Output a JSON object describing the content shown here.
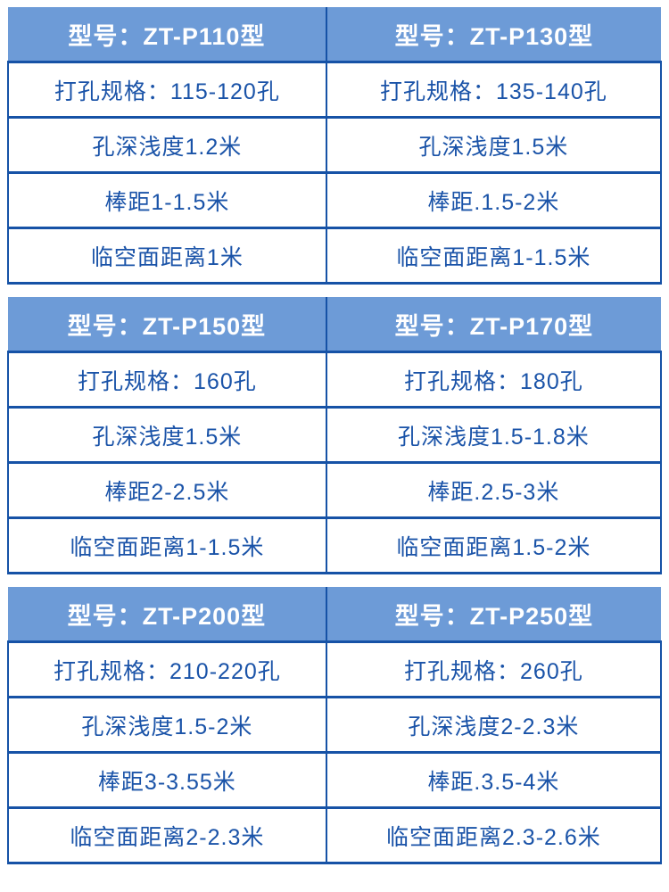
{
  "colors": {
    "header_bg": "#6D9BD7",
    "header_text": "#FFFFFF",
    "border": "#1652A6",
    "cell_text": "#1A53A8",
    "cell_bg": "#FFFFFF",
    "page_bg": "#FFFFFF"
  },
  "tables": [
    {
      "columns": [
        {
          "header": "型号：ZT-P110型",
          "rows": [
            "打孔规格：115-120孔",
            "孔深浅度1.2米",
            "棒距1-1.5米",
            "临空面距离1米"
          ]
        },
        {
          "header": "型号：ZT-P130型",
          "rows": [
            "打孔规格：135-140孔",
            "孔深浅度1.5米",
            "棒距.1.5-2米",
            "临空面距离1-1.5米"
          ]
        }
      ]
    },
    {
      "columns": [
        {
          "header": "型号：ZT-P150型",
          "rows": [
            "打孔规格：160孔",
            "孔深浅度1.5米",
            "棒距2-2.5米",
            "临空面距离1-1.5米"
          ]
        },
        {
          "header": "型号：ZT-P170型",
          "rows": [
            "打孔规格：180孔",
            "孔深浅度1.5-1.8米",
            "棒距.2.5-3米",
            "临空面距离1.5-2米"
          ]
        }
      ]
    },
    {
      "columns": [
        {
          "header": "型号：ZT-P200型",
          "rows": [
            "打孔规格：210-220孔",
            "孔深浅度1.5-2米",
            "棒距3-3.55米",
            "临空面距离2-2.3米"
          ]
        },
        {
          "header": "型号：ZT-P250型",
          "rows": [
            "打孔规格：260孔",
            "孔深浅度2-2.3米",
            "棒距.3.5-4米",
            "临空面距离2.3-2.6米"
          ]
        }
      ]
    }
  ]
}
